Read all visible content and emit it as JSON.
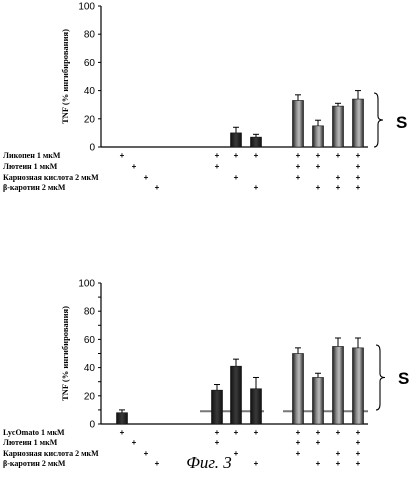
{
  "caption": "Фиг. 3",
  "chart_data": [
    {
      "type": "bar",
      "title": "",
      "xlabel": "",
      "ylabel": "TNF (% ингибирования)",
      "ylim": [
        0,
        100
      ],
      "yticks": [
        "0",
        "20",
        "40",
        "60",
        "80",
        "100"
      ],
      "bracket_label": "S",
      "baseline": null,
      "rows": [
        "Ликопен 1 мкМ",
        "Лютеин 1 мкМ",
        "Карнозная кислота 2 мкМ",
        "β-каротин 2 мкМ"
      ],
      "conditions": [
        {
          "rows": [
            1,
            0,
            0,
            0
          ],
          "value": null,
          "error": null
        },
        {
          "rows": [
            0,
            1,
            0,
            0
          ],
          "value": null,
          "error": null
        },
        {
          "rows": [
            0,
            0,
            1,
            0
          ],
          "value": null,
          "error": null
        },
        {
          "rows": [
            0,
            0,
            0,
            1
          ],
          "value": null,
          "error": null
        },
        {
          "rows": [
            1,
            1,
            0,
            0
          ],
          "value": null,
          "error": null
        },
        {
          "rows": [
            1,
            0,
            1,
            0
          ],
          "value": 10,
          "error": 4
        },
        {
          "rows": [
            1,
            0,
            0,
            1
          ],
          "value": 7,
          "error": 2
        },
        {
          "rows": [
            1,
            1,
            1,
            0
          ],
          "value": 33,
          "error": 4
        },
        {
          "rows": [
            1,
            1,
            0,
            1
          ],
          "value": 15,
          "error": 4
        },
        {
          "rows": [
            1,
            0,
            1,
            1
          ],
          "value": 29,
          "error": 2
        },
        {
          "rows": [
            1,
            1,
            1,
            1
          ],
          "value": 34,
          "error": 6
        }
      ],
      "groups": [
        [
          0,
          1,
          2,
          3
        ],
        [
          4,
          5,
          6
        ],
        [
          7,
          8,
          9,
          10
        ]
      ]
    },
    {
      "type": "bar",
      "title": "",
      "xlabel": "",
      "ylabel": "TNF (% ингибирования)",
      "ylim": [
        0,
        100
      ],
      "yticks": [
        "0",
        "10",
        "20",
        "30",
        "40",
        "50",
        "60",
        "70",
        "80",
        "90",
        "100"
      ],
      "bracket_label": "S",
      "baseline": 9,
      "rows": [
        "LycOmato 1 мкМ",
        "Лютеин 1 мкМ",
        "Карнозная кислота 2 мкМ",
        "β-каротин 2 мкМ"
      ],
      "conditions": [
        {
          "rows": [
            1,
            0,
            0,
            0
          ],
          "value": 8,
          "error": 2
        },
        {
          "rows": [
            0,
            1,
            0,
            0
          ],
          "value": null,
          "error": null
        },
        {
          "rows": [
            0,
            0,
            1,
            0
          ],
          "value": null,
          "error": null
        },
        {
          "rows": [
            0,
            0,
            0,
            1
          ],
          "value": null,
          "error": null
        },
        {
          "rows": [
            1,
            1,
            0,
            0
          ],
          "value": 24,
          "error": 4
        },
        {
          "rows": [
            1,
            0,
            1,
            0
          ],
          "value": 41,
          "error": 5
        },
        {
          "rows": [
            1,
            0,
            0,
            1
          ],
          "value": 25,
          "error": 8
        },
        {
          "rows": [
            1,
            1,
            1,
            0
          ],
          "value": 50,
          "error": 4
        },
        {
          "rows": [
            1,
            1,
            0,
            1
          ],
          "value": 33,
          "error": 3
        },
        {
          "rows": [
            1,
            0,
            1,
            1
          ],
          "value": 55,
          "error": 6
        },
        {
          "rows": [
            1,
            1,
            1,
            1
          ],
          "value": 54,
          "error": 7
        }
      ],
      "groups": [
        [
          0,
          1,
          2,
          3
        ],
        [
          4,
          5,
          6
        ],
        [
          7,
          8,
          9,
          10
        ]
      ]
    }
  ]
}
